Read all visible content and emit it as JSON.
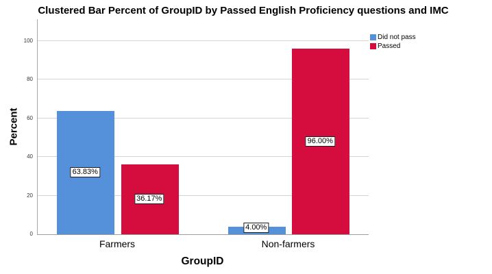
{
  "title": "Clustered Bar Percent of GroupID by Passed English Proficiency questions and IMC",
  "colors": {
    "did_not_pass": "#5590da",
    "passed": "#d50d3f",
    "grid": "#d4d4d4",
    "axis": "#a6a6a6"
  },
  "chart_data": {
    "type": "bar",
    "title": "Clustered Bar Percent of GroupID by Passed English Proficiency questions and IMC",
    "xlabel": "GroupID",
    "ylabel": "Percent",
    "categories": [
      "Farmers",
      "Non-farmers"
    ],
    "series": [
      {
        "name": "Did not pass",
        "color": "#5590da",
        "values": [
          63.83,
          4.0
        ],
        "labels": [
          "63.83%",
          "4.00%"
        ]
      },
      {
        "name": "Passed",
        "color": "#d50d3f",
        "values": [
          36.17,
          96.0
        ],
        "labels": [
          "36.17%",
          "96.00%"
        ]
      }
    ],
    "ylim": [
      0,
      100
    ],
    "yticks": [
      0,
      20,
      40,
      60,
      80,
      100
    ],
    "grid": true,
    "legend_position": "top-right"
  }
}
